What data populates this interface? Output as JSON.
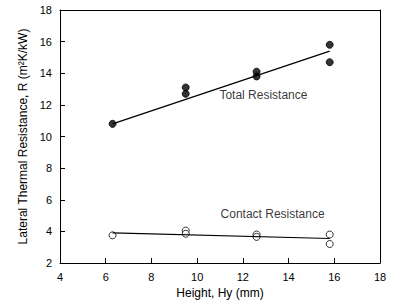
{
  "chart_data": {
    "type": "scatter",
    "x_label": "Height, Hy (mm)",
    "y_label": "Lateral Thermal Resistance, R (m²K/kW)",
    "xlim": [
      4,
      18
    ],
    "xticks": [
      4,
      6,
      8,
      10,
      12,
      14,
      16,
      18
    ],
    "ylim": [
      2,
      18
    ],
    "yticks": [
      2,
      4,
      6,
      8,
      10,
      12,
      14,
      16,
      18
    ],
    "grid": false,
    "series": [
      {
        "type": "scatter",
        "marker": "filled_circle",
        "color": "#000000",
        "x": [
          6.3,
          9.5,
          9.5,
          12.6,
          12.6,
          15.8,
          15.8
        ],
        "values": [
          10.8,
          13.1,
          12.7,
          14.1,
          13.8,
          15.8,
          14.7
        ]
      },
      {
        "type": "line",
        "line_style": "solid",
        "color": "#000000",
        "x": [
          6.3,
          15.8
        ],
        "values": [
          10.8,
          15.4
        ]
      },
      {
        "type": "scatter",
        "marker": "open_circle",
        "color": "#000000",
        "x": [
          6.3,
          9.5,
          9.5,
          12.6,
          12.6,
          15.8,
          15.8
        ],
        "values": [
          3.75,
          4.05,
          3.85,
          3.8,
          3.65,
          3.8,
          3.2
        ]
      },
      {
        "type": "line",
        "line_style": "solid",
        "color": "#000000",
        "x": [
          6.3,
          15.8
        ],
        "values": [
          3.9,
          3.55
        ]
      }
    ],
    "annotations": [
      {
        "text": "Total Resistance",
        "x": 12.9,
        "y": 12.6
      },
      {
        "text": "Contact Resistance",
        "x": 13.3,
        "y": 5.1
      }
    ]
  }
}
